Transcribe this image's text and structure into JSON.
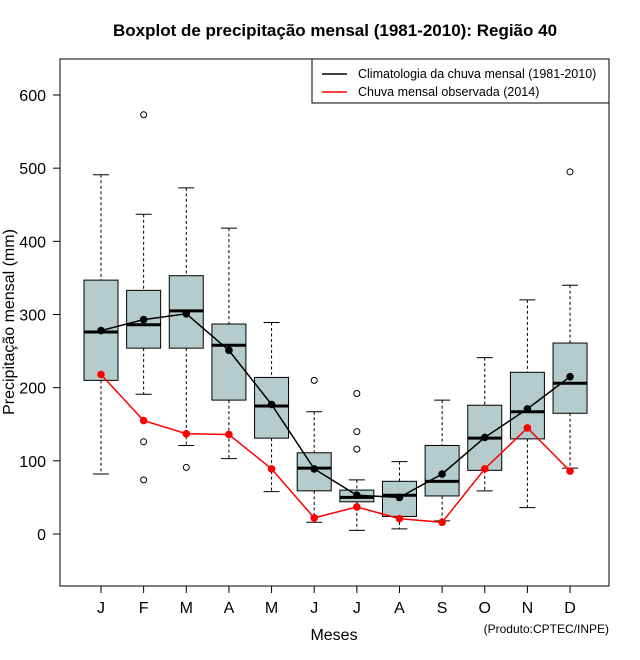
{
  "chart_data": {
    "type": "boxplot",
    "title": "Boxplot de precipitação mensal (1981-2010): Região 40",
    "xlabel": "Meses",
    "ylabel": "Precipitação mensal (mm)",
    "ylim": [
      -70,
      660
    ],
    "yticks": [
      0,
      100,
      200,
      300,
      400,
      500,
      600
    ],
    "categories": [
      "J",
      "F",
      "M",
      "A",
      "M",
      "J",
      "J",
      "A",
      "S",
      "O",
      "N",
      "D"
    ],
    "boxes": [
      {
        "min": 82,
        "q1": 210,
        "median": 276,
        "q3": 347,
        "max": 491,
        "outliers": []
      },
      {
        "min": 191,
        "q1": 254,
        "median": 286,
        "q3": 333,
        "max": 437,
        "outliers": [
          573,
          126,
          74
        ]
      },
      {
        "min": 121,
        "q1": 254,
        "median": 305,
        "q3": 353,
        "max": 473,
        "outliers": [
          91
        ]
      },
      {
        "min": 103,
        "q1": 183,
        "median": 258,
        "q3": 287,
        "max": 418,
        "outliers": []
      },
      {
        "min": 58,
        "q1": 131,
        "median": 175,
        "q3": 214,
        "max": 289,
        "outliers": []
      },
      {
        "min": 16,
        "q1": 59,
        "median": 90,
        "q3": 111,
        "max": 167,
        "outliers": [
          210
        ]
      },
      {
        "min": 5,
        "q1": 44,
        "median": 50,
        "q3": 60,
        "max": 74,
        "outliers": [
          192,
          140,
          116
        ]
      },
      {
        "min": 7,
        "q1": 24,
        "median": 53,
        "q3": 72,
        "max": 99,
        "outliers": []
      },
      {
        "min": 18,
        "q1": 52,
        "median": 72,
        "q3": 121,
        "max": 183,
        "outliers": []
      },
      {
        "min": 59,
        "q1": 87,
        "median": 131,
        "q3": 176,
        "max": 241,
        "outliers": []
      },
      {
        "min": 36,
        "q1": 130,
        "median": 167,
        "q3": 221,
        "max": 320,
        "outliers": []
      },
      {
        "min": 90,
        "q1": 165,
        "median": 206,
        "q3": 261,
        "max": 340,
        "outliers": [
          495
        ]
      }
    ],
    "series": [
      {
        "name": "Climatologia da chuva mensal (1981-2010)",
        "color": "#000000",
        "values": [
          278,
          293,
          301,
          251,
          177,
          89,
          53,
          50,
          82,
          132,
          171,
          215
        ]
      },
      {
        "name": "Chuva mensal observada (2014)",
        "color": "#ff0000",
        "values": [
          218,
          155,
          137,
          136,
          89,
          22,
          37,
          21,
          16,
          89,
          145,
          86
        ]
      }
    ],
    "legend_position": "top-right",
    "box_color": "#b4cccc",
    "credit": "(Produto:CPTEC/INPE)"
  }
}
